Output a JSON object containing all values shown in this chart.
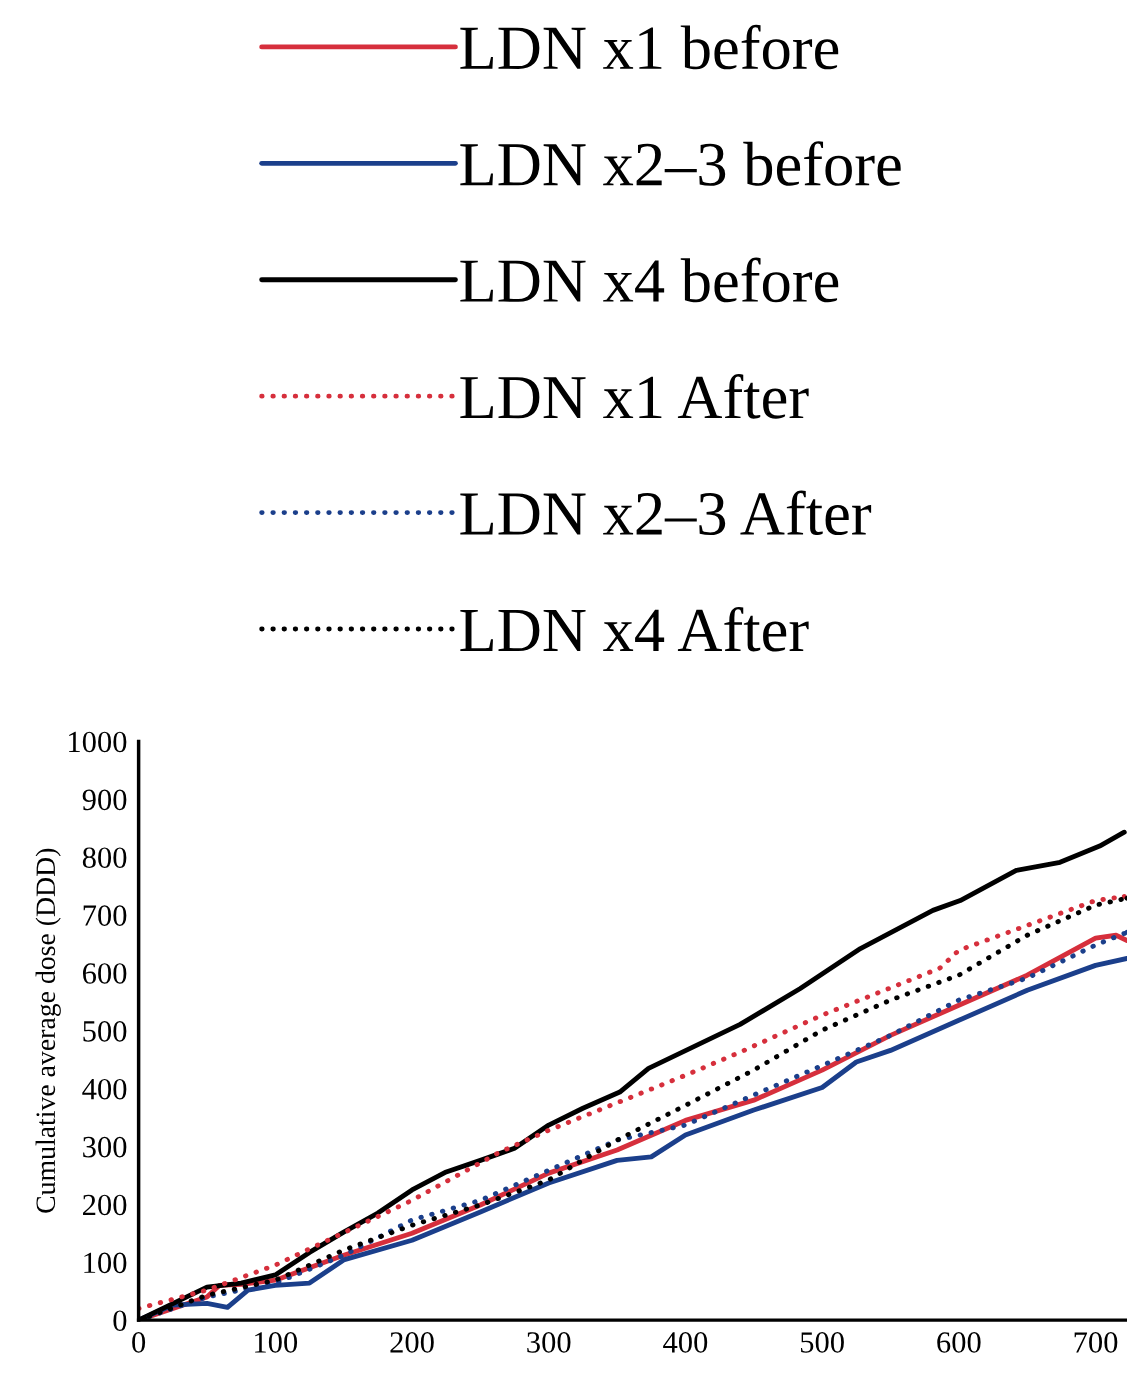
{
  "chart_data": {
    "type": "line",
    "ylabel": "Cumulative average dose (DDD)",
    "xlim": [
      0,
      723
    ],
    "ylim": [
      0,
      1000
    ],
    "xticks": [
      0,
      100,
      200,
      300,
      400,
      500,
      600,
      700
    ],
    "yticks": [
      0,
      100,
      200,
      300,
      400,
      500,
      600,
      700,
      800,
      900,
      1000
    ],
    "grid": false,
    "legend": "top",
    "marker": "none",
    "series": [
      {
        "name": "LDN x1 before",
        "color": "#d62f3c",
        "line_style": "solid",
        "x": [
          0,
          50,
          59,
          75,
          100,
          150,
          200,
          250,
          300,
          350,
          400,
          450,
          500,
          550,
          600,
          650,
          700,
          715,
          723
        ],
        "values": [
          0,
          40,
          60,
          62,
          69,
          112,
          150,
          199,
          254,
          294,
          345,
          380,
          432,
          492,
          544,
          596,
          660,
          665,
          656
        ]
      },
      {
        "name": "LDN x2–3 before",
        "color": "#1b3f8b",
        "line_style": "solid",
        "x": [
          0,
          25,
          50,
          65,
          80,
          100,
          125,
          150,
          200,
          250,
          300,
          350,
          375,
          400,
          450,
          500,
          525,
          550,
          600,
          650,
          700,
          723
        ],
        "values": [
          0,
          26,
          29,
          22,
          52,
          60,
          64,
          104,
          138,
          187,
          237,
          276,
          282,
          320,
          363,
          402,
          446,
          466,
          518,
          570,
          613,
          625
        ]
      },
      {
        "name": "LDN x4 before",
        "color": "#000000",
        "line_style": "solid",
        "x": [
          0,
          50,
          75,
          100,
          125,
          150,
          175,
          200,
          225,
          250,
          275,
          300,
          325,
          352,
          373,
          440,
          484,
          528,
          581,
          601,
          642,
          674,
          703,
          721
        ],
        "values": [
          0,
          57,
          64,
          78,
          117,
          152,
          185,
          225,
          256,
          276,
          297,
          337,
          366,
          394,
          435,
          511,
          573,
          642,
          708,
          725,
          777,
          791,
          819,
          843
        ]
      },
      {
        "name": "LDN x1 After",
        "color": "#d62f3c",
        "line_style": "dotted",
        "x": [
          0,
          50,
          100,
          200,
          264,
          300,
          400,
          440,
          500,
          586,
          600,
          700,
          721
        ],
        "values": [
          20,
          52,
          95,
          207,
          290,
          328,
          423,
          463,
          527,
          608,
          639,
          725,
          732
        ]
      },
      {
        "name": "LDN x2–3 After",
        "color": "#1b3f8b",
        "line_style": "dotted",
        "x": [
          0,
          50,
          100,
          150,
          200,
          250,
          300,
          350,
          400,
          450,
          500,
          550,
          600,
          650,
          700,
          723
        ],
        "values": [
          0,
          40,
          64,
          112,
          173,
          207,
          259,
          311,
          337,
          389,
          440,
          492,
          553,
          591,
          648,
          670
        ]
      },
      {
        "name": "LDN x4 After",
        "color": "#000000",
        "line_style": "dotted",
        "x": [
          0,
          50,
          100,
          150,
          200,
          250,
          300,
          350,
          400,
          450,
          500,
          550,
          600,
          650,
          700,
          723
        ],
        "values": [
          0,
          43,
          69,
          121,
          164,
          199,
          242,
          311,
          371,
          432,
          501,
          553,
          596,
          665,
          717,
          729
        ]
      }
    ]
  }
}
